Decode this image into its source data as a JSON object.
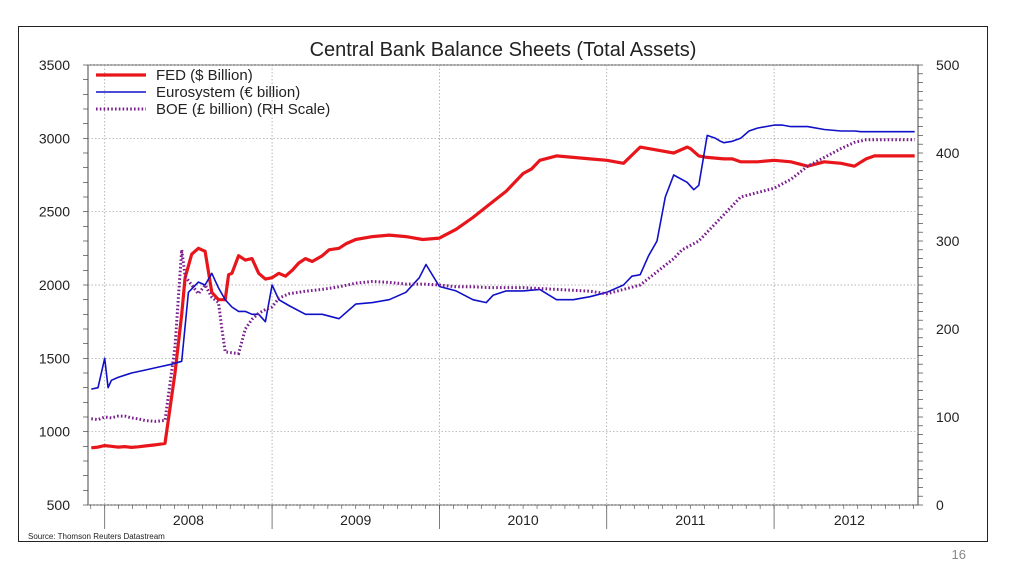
{
  "slide_number": "16",
  "chart_data": {
    "type": "line",
    "title": "Central Bank Balance Sheets (Total Assets)",
    "source": "Source: Thomson Reuters Datastream",
    "x_range": [
      2007.9,
      2012.86
    ],
    "x_ticks": [
      "2008",
      "2009",
      "2010",
      "2011",
      "2012"
    ],
    "ylim_left": [
      500,
      3500
    ],
    "ylim_right": [
      0,
      500
    ],
    "y_ticks_left": [
      "500",
      "1000",
      "1500",
      "2000",
      "2500",
      "3000",
      "3500"
    ],
    "y_ticks_right": [
      "0",
      "100",
      "200",
      "300",
      "400",
      "500"
    ],
    "grid": true,
    "legend_position": "top-left",
    "colors": {
      "fed": "#e8161b",
      "euro": "#1010c8",
      "boe": "#7a1e8e"
    },
    "series": [
      {
        "name": "FED ($ Billion)",
        "axis": "left",
        "style": "thick",
        "x": [
          2007.92,
          2007.96,
          2008.0,
          2008.04,
          2008.08,
          2008.12,
          2008.16,
          2008.2,
          2008.24,
          2008.3,
          2008.36,
          2008.42,
          2008.46,
          2008.48,
          2008.52,
          2008.56,
          2008.6,
          2008.64,
          2008.68,
          2008.72,
          2008.74,
          2008.76,
          2008.8,
          2008.84,
          2008.88,
          2008.92,
          2008.96,
          2009.0,
          2009.04,
          2009.08,
          2009.12,
          2009.16,
          2009.2,
          2009.24,
          2009.3,
          2009.34,
          2009.4,
          2009.44,
          2009.5,
          2009.6,
          2009.7,
          2009.8,
          2009.9,
          2010.0,
          2010.1,
          2010.2,
          2010.3,
          2010.4,
          2010.5,
          2010.55,
          2010.6,
          2010.7,
          2010.8,
          2010.9,
          2011.0,
          2011.1,
          2011.2,
          2011.3,
          2011.4,
          2011.48,
          2011.5,
          2011.55,
          2011.6,
          2011.7,
          2011.75,
          2011.8,
          2011.9,
          2012.0,
          2012.1,
          2012.2,
          2012.3,
          2012.4,
          2012.48,
          2012.55,
          2012.6,
          2012.65,
          2012.7,
          2012.75,
          2012.8,
          2012.84
        ],
        "values": [
          890,
          895,
          905,
          900,
          895,
          898,
          893,
          897,
          902,
          910,
          920,
          1400,
          1800,
          2050,
          2210,
          2250,
          2230,
          1950,
          1900,
          1900,
          2070,
          2080,
          2200,
          2170,
          2180,
          2080,
          2040,
          2050,
          2080,
          2060,
          2100,
          2150,
          2180,
          2160,
          2200,
          2240,
          2250,
          2280,
          2310,
          2330,
          2340,
          2330,
          2310,
          2320,
          2380,
          2460,
          2550,
          2640,
          2760,
          2790,
          2850,
          2880,
          2870,
          2860,
          2850,
          2830,
          2940,
          2920,
          2900,
          2940,
          2930,
          2880,
          2870,
          2860,
          2860,
          2840,
          2840,
          2850,
          2840,
          2810,
          2840,
          2830,
          2810,
          2860,
          2880,
          2880,
          2880,
          2880,
          2880,
          2880
        ]
      },
      {
        "name": "Eurosystem (€ billion)",
        "axis": "left",
        "style": "thin",
        "x": [
          2007.92,
          2007.96,
          2008.0,
          2008.02,
          2008.04,
          2008.08,
          2008.16,
          2008.24,
          2008.32,
          2008.4,
          2008.46,
          2008.5,
          2008.56,
          2008.6,
          2008.64,
          2008.68,
          2008.72,
          2008.76,
          2008.8,
          2008.84,
          2008.88,
          2008.92,
          2008.96,
          2009.0,
          2009.04,
          2009.1,
          2009.2,
          2009.3,
          2009.4,
          2009.5,
          2009.6,
          2009.7,
          2009.8,
          2009.88,
          2009.92,
          2010.0,
          2010.1,
          2010.2,
          2010.28,
          2010.32,
          2010.4,
          2010.5,
          2010.6,
          2010.7,
          2010.8,
          2010.9,
          2011.0,
          2011.1,
          2011.15,
          2011.2,
          2011.25,
          2011.3,
          2011.35,
          2011.4,
          2011.48,
          2011.52,
          2011.55,
          2011.6,
          2011.65,
          2011.68,
          2011.7,
          2011.75,
          2011.8,
          2011.85,
          2011.9,
          2012.0,
          2012.05,
          2012.1,
          2012.2,
          2012.3,
          2012.4,
          2012.48,
          2012.52,
          2012.6,
          2012.7,
          2012.75,
          2012.8,
          2012.84
        ],
        "values": [
          1290,
          1300,
          1500,
          1300,
          1350,
          1370,
          1400,
          1420,
          1440,
          1460,
          1480,
          1950,
          2020,
          2000,
          2080,
          1980,
          1900,
          1850,
          1820,
          1820,
          1800,
          1800,
          1750,
          2000,
          1900,
          1860,
          1800,
          1800,
          1770,
          1870,
          1880,
          1900,
          1950,
          2050,
          2140,
          1990,
          1960,
          1900,
          1880,
          1930,
          1960,
          1960,
          1970,
          1900,
          1900,
          1920,
          1950,
          2000,
          2060,
          2070,
          2200,
          2300,
          2600,
          2750,
          2700,
          2650,
          2680,
          3020,
          3000,
          2980,
          2970,
          2980,
          3000,
          3050,
          3070,
          3090,
          3090,
          3080,
          3080,
          3060,
          3050,
          3050,
          3045,
          3045,
          3045,
          3045,
          3045,
          3045
        ]
      },
      {
        "name": "BOE (£ billion) (RH Scale)",
        "axis": "right",
        "style": "dotted",
        "x": [
          2007.92,
          2007.96,
          2008.0,
          2008.04,
          2008.08,
          2008.12,
          2008.16,
          2008.2,
          2008.24,
          2008.3,
          2008.36,
          2008.42,
          2008.46,
          2008.48,
          2008.52,
          2008.56,
          2008.6,
          2008.64,
          2008.68,
          2008.7,
          2008.72,
          2008.76,
          2008.8,
          2008.84,
          2008.88,
          2008.92,
          2008.96,
          2009.0,
          2009.04,
          2009.1,
          2009.2,
          2009.3,
          2009.4,
          2009.5,
          2009.6,
          2009.7,
          2009.8,
          2009.9,
          2010.0,
          2010.1,
          2010.2,
          2010.3,
          2010.4,
          2010.5,
          2010.6,
          2010.7,
          2010.8,
          2010.9,
          2011.0,
          2011.1,
          2011.2,
          2011.3,
          2011.4,
          2011.45,
          2011.5,
          2011.55,
          2011.6,
          2011.65,
          2011.7,
          2011.8,
          2011.9,
          2012.0,
          2012.1,
          2012.2,
          2012.3,
          2012.4,
          2012.48,
          2012.55,
          2012.6,
          2012.65,
          2012.7,
          2012.75,
          2012.8,
          2012.84
        ],
        "values": [
          98,
          97,
          100,
          99,
          101,
          101,
          99,
          98,
          96,
          95,
          96,
          180,
          290,
          260,
          250,
          240,
          250,
          236,
          230,
          200,
          174,
          173,
          172,
          200,
          211,
          218,
          222,
          225,
          235,
          240,
          243,
          245,
          248,
          252,
          254,
          253,
          251,
          251,
          250,
          248,
          248,
          247,
          247,
          247,
          246,
          245,
          244,
          243,
          240,
          245,
          250,
          265,
          280,
          290,
          295,
          300,
          310,
          320,
          330,
          350,
          355,
          360,
          370,
          385,
          395,
          405,
          412,
          415,
          415,
          415,
          415,
          415,
          415,
          415
        ]
      }
    ]
  }
}
